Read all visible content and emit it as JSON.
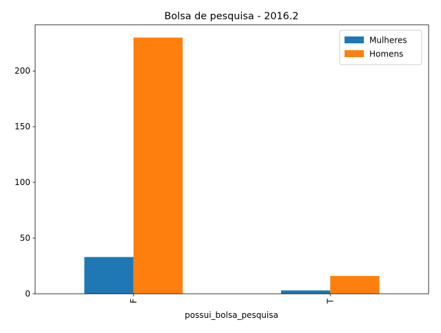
{
  "chart_data": {
    "type": "bar",
    "title": "Bolsa de pesquisa - 2016.2",
    "xlabel": "possui_bolsa_pesquisa",
    "ylabel": "",
    "categories": [
      "F",
      "T"
    ],
    "series": [
      {
        "name": "Mulheres",
        "values": [
          33,
          3
        ],
        "color": "#1f77b4"
      },
      {
        "name": "Homens",
        "values": [
          230,
          16
        ],
        "color": "#ff7f0e"
      }
    ],
    "ylim": [
      0,
      241.5
    ],
    "yticks": [
      0,
      50,
      100,
      150,
      200
    ],
    "grid": false,
    "legend_position": "top-right"
  }
}
